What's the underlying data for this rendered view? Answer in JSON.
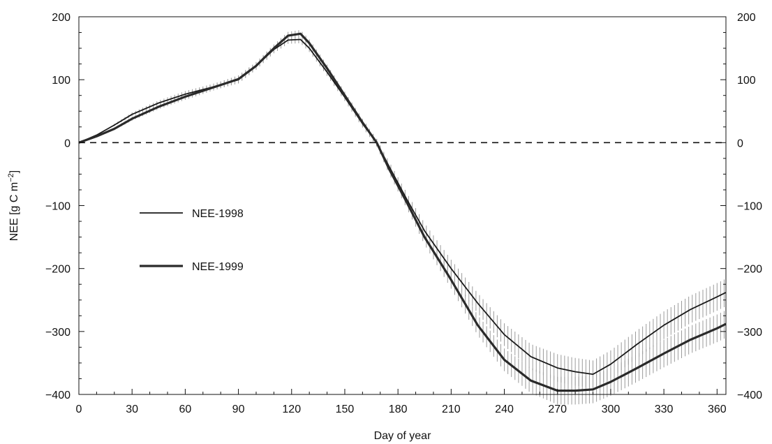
{
  "chart_data": {
    "type": "line",
    "title": "",
    "xlabel": "Day of year",
    "ylabel_main": "NEE [g C m",
    "ylabel_sup": "−2",
    "ylabel_close": "]",
    "xlim": [
      0,
      365
    ],
    "ylim": [
      -400,
      200
    ],
    "x_ticks": [
      0,
      30,
      60,
      90,
      120,
      150,
      180,
      210,
      240,
      270,
      300,
      330,
      360
    ],
    "y_ticks": [
      -400,
      -300,
      -200,
      -100,
      0,
      100,
      200
    ],
    "y_tick_labels": [
      "−400",
      "−300",
      "−200",
      "−100",
      "0",
      "100",
      "200"
    ],
    "x_tick_labels": [
      "0",
      "30",
      "60",
      "90",
      "120",
      "150",
      "180",
      "210",
      "240",
      "270",
      "300",
      "330",
      "360"
    ],
    "reference_line": {
      "y": 0,
      "style": "dashed"
    },
    "grid": false,
    "legend_position": "middle-left",
    "series": [
      {
        "name": "NEE-1998",
        "line_width": "thin",
        "color": "#1a1a1a",
        "x": [
          0,
          10,
          20,
          30,
          45,
          60,
          75,
          90,
          100,
          110,
          118,
          125,
          130,
          140,
          150,
          160,
          168,
          175,
          185,
          195,
          210,
          225,
          240,
          255,
          270,
          280,
          290,
          300,
          315,
          330,
          345,
          360,
          365
        ],
        "y": [
          0,
          12,
          28,
          45,
          63,
          77,
          88,
          100,
          122,
          148,
          163,
          164,
          150,
          112,
          72,
          30,
          0,
          -38,
          -90,
          -140,
          -200,
          -255,
          -305,
          -340,
          -358,
          -364,
          -368,
          -352,
          -320,
          -290,
          -265,
          -245,
          -238
        ],
        "error": [
          0,
          1,
          2,
          3,
          4,
          5,
          5,
          6,
          6,
          6,
          6,
          6,
          6,
          6,
          6,
          6,
          6,
          8,
          10,
          12,
          14,
          16,
          18,
          20,
          22,
          22,
          22,
          22,
          22,
          22,
          22,
          22,
          22
        ]
      },
      {
        "name": "NEE-1999",
        "line_width": "thick",
        "color": "#2a2a2a",
        "x": [
          0,
          10,
          20,
          30,
          45,
          60,
          75,
          90,
          100,
          110,
          118,
          125,
          130,
          140,
          150,
          160,
          168,
          175,
          185,
          195,
          210,
          225,
          240,
          255,
          270,
          280,
          290,
          300,
          315,
          330,
          345,
          360,
          365
        ],
        "y": [
          0,
          10,
          22,
          38,
          57,
          73,
          87,
          101,
          122,
          150,
          170,
          173,
          158,
          118,
          75,
          32,
          0,
          -42,
          -95,
          -150,
          -218,
          -290,
          -345,
          -378,
          -394,
          -394,
          -392,
          -380,
          -358,
          -335,
          -313,
          -295,
          -288
        ],
        "error": [
          0,
          1,
          2,
          3,
          4,
          5,
          5,
          6,
          6,
          6,
          6,
          6,
          6,
          6,
          6,
          6,
          6,
          8,
          10,
          12,
          14,
          16,
          18,
          20,
          22,
          22,
          22,
          22,
          22,
          22,
          22,
          22,
          22
        ]
      }
    ]
  }
}
